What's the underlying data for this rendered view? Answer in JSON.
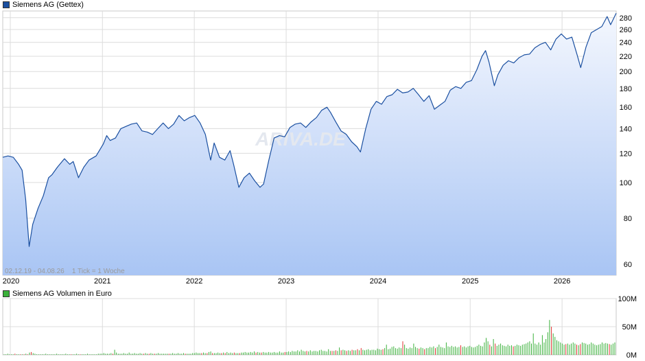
{
  "price_legend": {
    "label": "Siemens AG (Gettex)",
    "color": "#1a4fa0"
  },
  "volume_legend": {
    "label": "Siemens AG Volumen in Euro",
    "color": "#3ab03a"
  },
  "range_note": "02.12.19 - 04.08.26    1 Tick = 1 Woche",
  "watermark": "ARIVA.DE",
  "chart_data": [
    {
      "type": "line",
      "title": "Siemens AG (Gettex)",
      "yscale": "log",
      "ylim": [
        56,
        292
      ],
      "yticks": [
        60,
        80,
        100,
        120,
        140,
        160,
        180,
        200,
        220,
        240,
        260,
        280
      ],
      "xlim": [
        "2019-12-02",
        "2026-08-04"
      ],
      "xticks": [
        {
          "label": "2020",
          "date": "2020-01-01"
        },
        {
          "label": "2021",
          "date": "2021-01-01"
        },
        {
          "label": "2022",
          "date": "2022-01-01"
        },
        {
          "label": "2023",
          "date": "2023-01-01"
        },
        {
          "label": "2024",
          "date": "2024-01-01"
        },
        {
          "label": "2025",
          "date": "2025-01-01"
        },
        {
          "label": "2026",
          "date": "2026-01-01"
        }
      ],
      "grid": true,
      "area_fill": true,
      "line_color": "#1a4fa0",
      "series": [
        {
          "name": "Siemens AG (Gettex)",
          "points": [
            [
              "2019-12-02",
              117
            ],
            [
              "2019-12-23",
              118
            ],
            [
              "2020-01-13",
              117
            ],
            [
              "2020-02-03",
              112
            ],
            [
              "2020-02-17",
              108
            ],
            [
              "2020-03-02",
              90
            ],
            [
              "2020-03-16",
              67
            ],
            [
              "2020-03-30",
              77
            ],
            [
              "2020-04-20",
              85
            ],
            [
              "2020-05-11",
              92
            ],
            [
              "2020-06-01",
              103
            ],
            [
              "2020-06-15",
              105
            ],
            [
              "2020-07-06",
              110
            ],
            [
              "2020-08-03",
              116
            ],
            [
              "2020-08-24",
              112
            ],
            [
              "2020-09-07",
              114
            ],
            [
              "2020-09-28",
              103
            ],
            [
              "2020-10-19",
              110
            ],
            [
              "2020-11-09",
              115
            ],
            [
              "2020-12-07",
              118
            ],
            [
              "2021-01-04",
              127
            ],
            [
              "2021-01-18",
              134
            ],
            [
              "2021-02-01",
              130
            ],
            [
              "2021-02-22",
              132
            ],
            [
              "2021-03-15",
              140
            ],
            [
              "2021-04-05",
              142
            ],
            [
              "2021-04-26",
              144
            ],
            [
              "2021-05-17",
              145
            ],
            [
              "2021-06-07",
              138
            ],
            [
              "2021-06-28",
              137
            ],
            [
              "2021-07-19",
              135
            ],
            [
              "2021-08-09",
              140
            ],
            [
              "2021-08-30",
              145
            ],
            [
              "2021-09-20",
              140
            ],
            [
              "2021-10-11",
              144
            ],
            [
              "2021-11-01",
              152
            ],
            [
              "2021-11-22",
              147
            ],
            [
              "2021-12-13",
              150
            ],
            [
              "2022-01-03",
              152
            ],
            [
              "2022-01-24",
              145
            ],
            [
              "2022-02-14",
              135
            ],
            [
              "2022-03-07",
              115
            ],
            [
              "2022-03-21",
              128
            ],
            [
              "2022-04-11",
              117
            ],
            [
              "2022-05-02",
              115
            ],
            [
              "2022-05-23",
              122
            ],
            [
              "2022-06-06",
              112
            ],
            [
              "2022-06-27",
              97
            ],
            [
              "2022-07-18",
              103
            ],
            [
              "2022-08-08",
              106
            ],
            [
              "2022-08-29",
              101
            ],
            [
              "2022-09-19",
              97
            ],
            [
              "2022-10-03",
              99
            ],
            [
              "2022-10-24",
              115
            ],
            [
              "2022-11-14",
              132
            ],
            [
              "2022-12-05",
              134
            ],
            [
              "2022-12-26",
              133
            ],
            [
              "2023-01-16",
              141
            ],
            [
              "2023-02-06",
              144
            ],
            [
              "2023-02-27",
              145
            ],
            [
              "2023-03-20",
              141
            ],
            [
              "2023-04-10",
              146
            ],
            [
              "2023-05-01",
              150
            ],
            [
              "2023-05-22",
              157
            ],
            [
              "2023-06-12",
              160
            ],
            [
              "2023-06-26",
              155
            ],
            [
              "2023-07-17",
              146
            ],
            [
              "2023-08-07",
              138
            ],
            [
              "2023-08-28",
              135
            ],
            [
              "2023-09-18",
              129
            ],
            [
              "2023-10-09",
              125
            ],
            [
              "2023-10-23",
              121
            ],
            [
              "2023-11-13",
              140
            ],
            [
              "2023-12-04",
              158
            ],
            [
              "2023-12-25",
              166
            ],
            [
              "2024-01-15",
              163
            ],
            [
              "2024-02-05",
              171
            ],
            [
              "2024-02-26",
              173
            ],
            [
              "2024-03-18",
              179
            ],
            [
              "2024-04-08",
              175
            ],
            [
              "2024-04-29",
              176
            ],
            [
              "2024-05-20",
              180
            ],
            [
              "2024-06-10",
              173
            ],
            [
              "2024-07-01",
              166
            ],
            [
              "2024-07-22",
              172
            ],
            [
              "2024-08-12",
              158
            ],
            [
              "2024-09-02",
              162
            ],
            [
              "2024-09-23",
              166
            ],
            [
              "2024-10-14",
              178
            ],
            [
              "2024-11-04",
              182
            ],
            [
              "2024-11-25",
              180
            ],
            [
              "2024-12-16",
              187
            ],
            [
              "2025-01-06",
              189
            ],
            [
              "2025-01-27",
              202
            ],
            [
              "2025-02-17",
              220
            ],
            [
              "2025-03-03",
              228
            ],
            [
              "2025-03-17",
              212
            ],
            [
              "2025-04-07",
              183
            ],
            [
              "2025-04-21",
              196
            ],
            [
              "2025-05-12",
              208
            ],
            [
              "2025-06-02",
              214
            ],
            [
              "2025-06-23",
              211
            ],
            [
              "2025-07-14",
              218
            ],
            [
              "2025-08-04",
              222
            ],
            [
              "2025-08-25",
              223
            ],
            [
              "2025-09-15",
              232
            ],
            [
              "2025-10-06",
              237
            ],
            [
              "2025-10-27",
              240
            ],
            [
              "2025-11-17",
              229
            ],
            [
              "2025-12-08",
              245
            ],
            [
              "2025-12-29",
              253
            ],
            [
              "2026-01-19",
              245
            ],
            [
              "2026-02-09",
              248
            ],
            [
              "2026-03-02",
              222
            ],
            [
              "2026-03-16",
              205
            ],
            [
              "2026-04-06",
              233
            ],
            [
              "2026-04-27",
              255
            ],
            [
              "2026-05-18",
              260
            ],
            [
              "2026-06-08",
              265
            ],
            [
              "2026-06-29",
              282
            ],
            [
              "2026-07-13",
              268
            ],
            [
              "2026-08-04",
              288
            ]
          ]
        }
      ]
    },
    {
      "type": "bar",
      "title": "Siemens AG Volumen in Euro",
      "ylim": [
        0,
        100000000
      ],
      "yticks": [
        {
          "value": 0,
          "label": "0M"
        },
        {
          "value": 50000000,
          "label": "50M"
        },
        {
          "value": 100000000,
          "label": "100M"
        }
      ],
      "xlim": [
        "2019-12-02",
        "2026-08-04"
      ],
      "bar_colors": {
        "up": "#3ab03a",
        "down": "#e03030"
      },
      "series": [
        {
          "name": "Siemens AG Volumen in Euro",
          "weekly_volume_in_euro": [
            1000000.0,
            1000000.0,
            2000000.0,
            1000000.0,
            1000000.0,
            1000000.0,
            2000000.0,
            1000000.0,
            1000000.0,
            1000000.0,
            1000000.0,
            1000000.0,
            2000000.0,
            1000000.0,
            4000000.0,
            5000000.0,
            3000000.0,
            2000000.0,
            1000000.0,
            1000000.0,
            1000000.0,
            1000000.0,
            1000000.0,
            2000000.0,
            1000000.0,
            1000000.0,
            1000000.0,
            1000000.0,
            1000000.0,
            2000000.0,
            1000000.0,
            1000000.0,
            1000000.0,
            1000000.0,
            2000000.0,
            1000000.0,
            1000000.0,
            1000000.0,
            1000000.0,
            1000000.0,
            2000000.0,
            1000000.0,
            1000000.0,
            1000000.0,
            1000000.0,
            1000000.0,
            2000000.0,
            1000000.0,
            1000000.0,
            1000000.0,
            1000000.0,
            1000000.0,
            2000000.0,
            2000000.0,
            2000000.0,
            3000000.0,
            2000000.0,
            2000000.0,
            2000000.0,
            3000000.0,
            2000000.0,
            9000000.0,
            4000000.0,
            2000000.0,
            2000000.0,
            2000000.0,
            3000000.0,
            2000000.0,
            2000000.0,
            4000000.0,
            2000000.0,
            2000000.0,
            3000000.0,
            2000000.0,
            2000000.0,
            3000000.0,
            2000000.0,
            2000000.0,
            3000000.0,
            2000000.0,
            2000000.0,
            3000000.0,
            2000000.0,
            2000000.0,
            2000000.0,
            3000000.0,
            2000000.0,
            2000000.0,
            2000000.0,
            2000000.0,
            2000000.0,
            2000000.0,
            2000000.0,
            3000000.0,
            2000000.0,
            2000000.0,
            3000000.0,
            2000000.0,
            2000000.0,
            3000000.0,
            2000000.0,
            2000000.0,
            2000000.0,
            2000000.0,
            3000000.0,
            3000000.0,
            4000000.0,
            3000000.0,
            3000000.0,
            3000000.0,
            4000000.0,
            3000000.0,
            3000000.0,
            5000000.0,
            6000000.0,
            3000000.0,
            3000000.0,
            3000000.0,
            4000000.0,
            3000000.0,
            3000000.0,
            4000000.0,
            3000000.0,
            5000000.0,
            3000000.0,
            4000000.0,
            3000000.0,
            4000000.0,
            3000000.0,
            3000000.0,
            3000000.0,
            4000000.0,
            4000000.0,
            5000000.0,
            4000000.0,
            4000000.0,
            5000000.0,
            4000000.0,
            6000000.0,
            4000000.0,
            5000000.0,
            4000000.0,
            4000000.0,
            5000000.0,
            4000000.0,
            4000000.0,
            5000000.0,
            4000000.0,
            4000000.0,
            5000000.0,
            4000000.0,
            4000000.0,
            6000000.0,
            4000000.0,
            4000000.0,
            5000000.0,
            5000000.0,
            6000000.0,
            5000000.0,
            7000000.0,
            6000000.0,
            6000000.0,
            8000000.0,
            6000000.0,
            9000000.0,
            7000000.0,
            6000000.0,
            7000000.0,
            6000000.0,
            8000000.0,
            6000000.0,
            7000000.0,
            7000000.0,
            6000000.0,
            8000000.0,
            9000000.0,
            7000000.0,
            7000000.0,
            6000000.0,
            10000000.0,
            7000000.0,
            7000000.0,
            7000000.0,
            8000000.0,
            7000000.0,
            13000000.0,
            8000000.0,
            9000000.0,
            8000000.0,
            7000000.0,
            8000000.0,
            7000000.0,
            9000000.0,
            8000000.0,
            8000000.0,
            10000000.0,
            8000000.0,
            12000000.0,
            9000000.0,
            8000000.0,
            9000000.0,
            10000000.0,
            8000000.0,
            9000000.0,
            9000000.0,
            8000000.0,
            11000000.0,
            10000000.0,
            9000000.0,
            10000000.0,
            12000000.0,
            18000000.0,
            10000000.0,
            11000000.0,
            14000000.0,
            15000000.0,
            12000000.0,
            11000000.0,
            13000000.0,
            12000000.0,
            24000000.0,
            18000000.0,
            12000000.0,
            11000000.0,
            13000000.0,
            12000000.0,
            20000000.0,
            14000000.0,
            12000000.0,
            11000000.0,
            13000000.0,
            12000000.0,
            10000000.0,
            12000000.0,
            12000000.0,
            14000000.0,
            13000000.0,
            15000000.0,
            12000000.0,
            14000000.0,
            18000000.0,
            14000000.0,
            13000000.0,
            12000000.0,
            22000000.0,
            15000000.0,
            14000000.0,
            16000000.0,
            14000000.0,
            15000000.0,
            13000000.0,
            14000000.0,
            17000000.0,
            14000000.0,
            15000000.0,
            13000000.0,
            15000000.0,
            16000000.0,
            14000000.0,
            13000000.0,
            14000000.0,
            16000000.0,
            18000000.0,
            16000000.0,
            15000000.0,
            22000000.0,
            30000000.0,
            24000000.0,
            18000000.0,
            15000000.0,
            28000000.0,
            20000000.0,
            16000000.0,
            18000000.0,
            20000000.0,
            17000000.0,
            16000000.0,
            15000000.0,
            18000000.0,
            16000000.0,
            17000000.0,
            15000000.0,
            16000000.0,
            18000000.0,
            17000000.0,
            16000000.0,
            18000000.0,
            19000000.0,
            20000000.0,
            22000000.0,
            24000000.0,
            20000000.0,
            38000000.0,
            20000000.0,
            18000000.0,
            22000000.0,
            18000000.0,
            35000000.0,
            22000000.0,
            28000000.0,
            40000000.0,
            62000000.0,
            50000000.0,
            38000000.0,
            32000000.0,
            26000000.0,
            24000000.0,
            22000000.0,
            20000000.0,
            18000000.0,
            19000000.0,
            20000000.0,
            18000000.0,
            20000000.0,
            22000000.0,
            20000000.0,
            18000000.0,
            17000000.0,
            19000000.0,
            22000000.0,
            21000000.0,
            20000000.0,
            18000000.0,
            19000000.0,
            22000000.0,
            20000000.0,
            18000000.0,
            17000000.0,
            18000000.0,
            19000000.0,
            22000000.0,
            20000000.0,
            21000000.0,
            20000000.0,
            19000000.0,
            18000000.0,
            20000000.0,
            22000000.0
          ]
        }
      ]
    }
  ]
}
